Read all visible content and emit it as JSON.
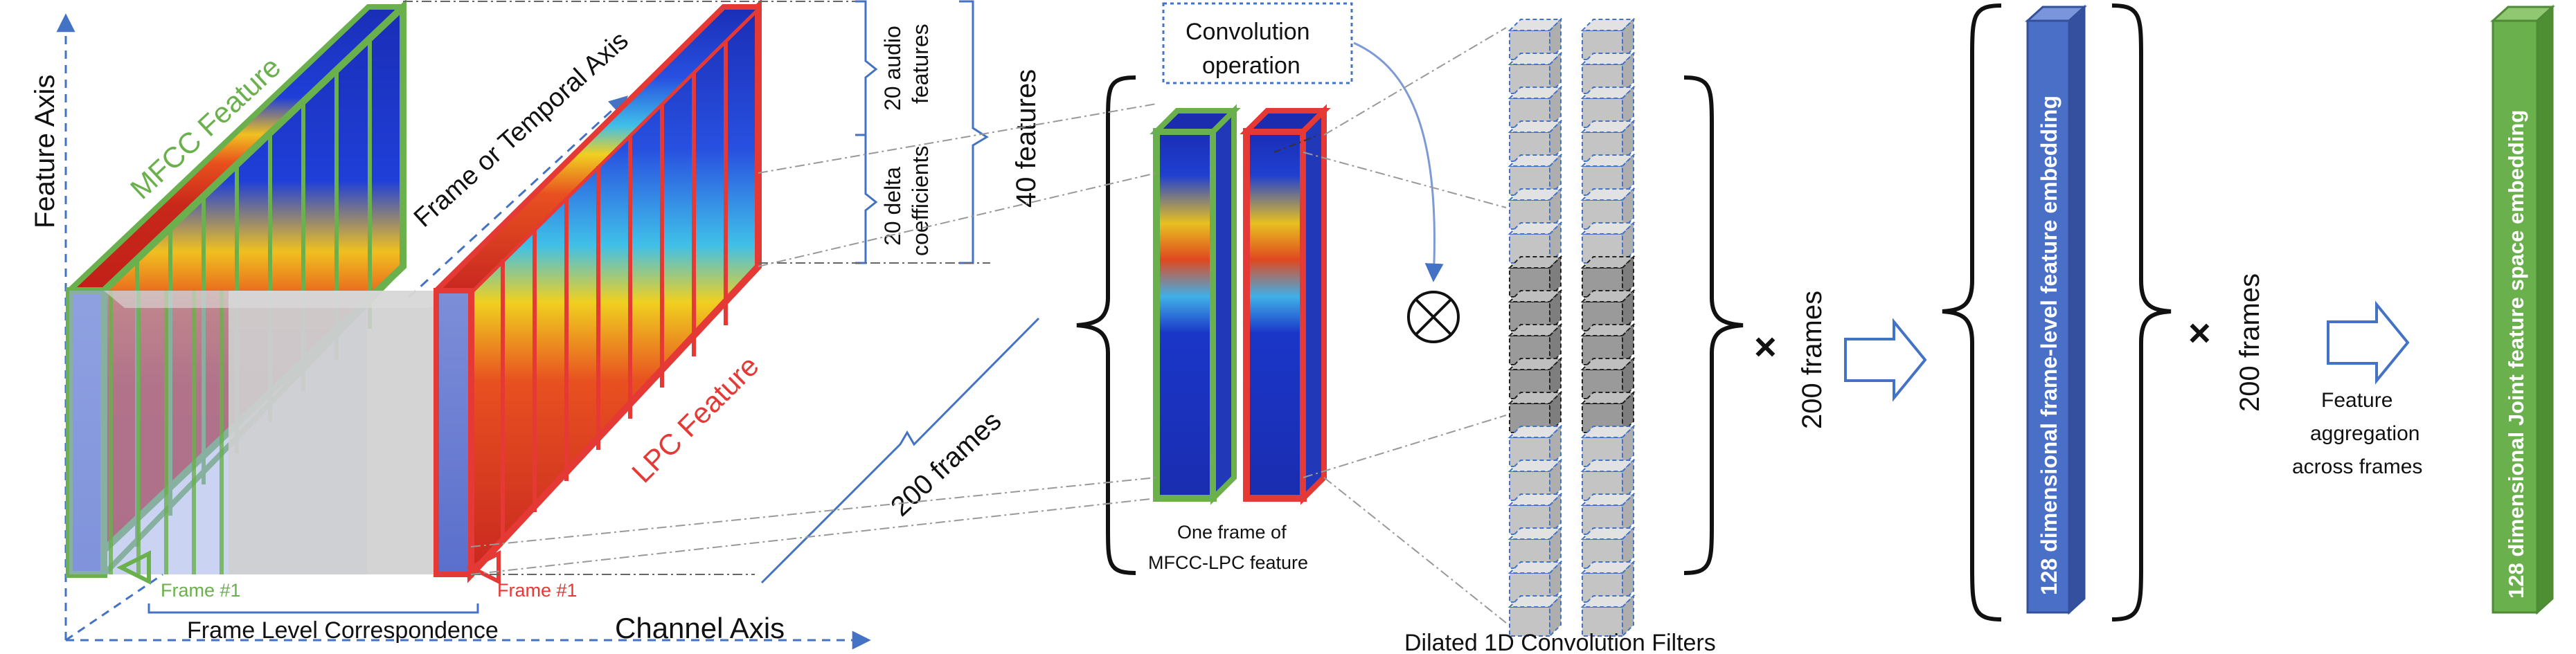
{
  "axes": {
    "feature_axis": "Feature Axis",
    "temporal_axis": "Frame or Temporal Axis",
    "channel_axis": "Channel Axis"
  },
  "features": {
    "mfcc": "MFCC Feature",
    "lpc": "LPC Feature",
    "audio_features": "20 audio features",
    "audio_features_line1": "20 audio",
    "audio_features_line2": "features",
    "delta_line1": "20 delta",
    "delta_line2": "coefficients",
    "total": "40 features",
    "frames_diag": "200 frames"
  },
  "frame_labels": {
    "green": "Frame #1",
    "red": "Frame #1",
    "correspondence": "Frame Level Correspondence"
  },
  "middle": {
    "conv_line1": "Convolution",
    "conv_line2": "operation",
    "one_frame_line1": "One frame of",
    "one_frame_line2": "MFCC-LPC feature",
    "filters": "Dilated 1D Convolution Filters",
    "times1": "×",
    "frames1": "200 frames"
  },
  "right": {
    "embedding": "128 dimensional frame-level feature embedding",
    "times2": "×",
    "frames2": "200 frames",
    "agg_line1": "Feature",
    "agg_line2": "aggregation",
    "agg_line3": "across frames",
    "joint": "128 dimensional Joint feature space embedding"
  },
  "colors": {
    "mfcc_green": "#6ab04c",
    "lpc_red": "#e53935",
    "axis_blue": "#4472c4",
    "embed_blue": "#4a6fc7",
    "joint_green": "#6ab04c"
  }
}
